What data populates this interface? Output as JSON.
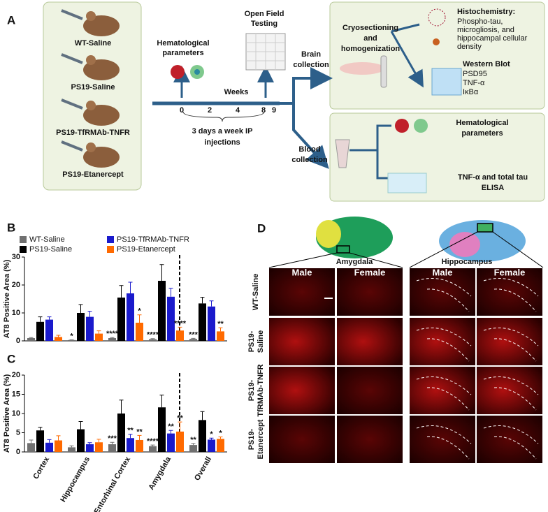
{
  "panels": [
    "A",
    "B",
    "C",
    "D"
  ],
  "panel_a": {
    "groups": [
      "WT-Saline",
      "PS19-Saline",
      "PS19-TfRMAb-TNFR",
      "PS19-Etanercept"
    ],
    "hematological": [
      "Hematological",
      "parameters"
    ],
    "open_field": [
      "Open Field",
      "Testing"
    ],
    "weeks": "Weeks",
    "week_ticks": [
      "0",
      "2",
      "4",
      "8",
      "9"
    ],
    "injections": [
      "3 days a week IP",
      "injections"
    ],
    "brain": [
      "Brain",
      "collection"
    ],
    "blood": [
      "Blood",
      "collection"
    ],
    "cryo": [
      "Cryosectioning",
      "and",
      "homogenization"
    ],
    "histo_title": "Histochemistry:",
    "histo_lines": [
      "Phospho-tau,",
      "microgliosis, and",
      "hippocampal cellular",
      "density"
    ],
    "western_title": "Western Blot",
    "western_lines": [
      "PSD95",
      "TNF-α",
      "IκBα"
    ],
    "blood_hema": [
      "Hematological",
      "parameters"
    ],
    "elisa": [
      "TNF-α and total tau",
      "ELISA"
    ]
  },
  "chart_data": [
    {
      "type": "bar",
      "ylabel": "AT8 Positive Area (%)",
      "ylim": [
        0,
        30
      ],
      "yticks": [
        0,
        10,
        20,
        30
      ],
      "series": [
        {
          "name": "WT-Saline",
          "color": "#707070",
          "values": [
            1.0,
            0.3,
            1.0,
            0.6,
            0.7
          ],
          "errors": [
            0.2,
            0.1,
            0.2,
            0.2,
            0.2
          ],
          "labels": [
            null,
            "*",
            "****",
            "****",
            "***"
          ]
        },
        {
          "name": "PS19-Saline",
          "color": "#000000",
          "values": [
            6.8,
            10.0,
            15.5,
            21.5,
            13.4
          ],
          "errors": [
            1.8,
            3.0,
            4.3,
            5.8,
            2.2
          ],
          "labels": [
            null,
            null,
            null,
            null,
            null
          ]
        },
        {
          "name": "PS19-TfRMAb-TNFR",
          "color": "#1a1acc",
          "values": [
            7.6,
            8.6,
            17.0,
            15.8,
            12.3
          ],
          "errors": [
            1.0,
            2.0,
            4.0,
            3.0,
            2.0
          ],
          "labels": [
            null,
            null,
            null,
            null,
            null
          ]
        },
        {
          "name": "PS19-Etanercept",
          "color": "#ff6a00",
          "values": [
            1.4,
            2.6,
            6.5,
            3.7,
            3.4
          ],
          "errors": [
            0.6,
            1.0,
            2.8,
            1.2,
            1.3
          ],
          "labels": [
            null,
            null,
            "*",
            "****",
            "**"
          ]
        }
      ]
    },
    {
      "type": "bar",
      "ylabel": "AT8 Positive Area (%)",
      "ylim": [
        0,
        20
      ],
      "yticks": [
        0,
        5,
        10,
        15,
        20
      ],
      "categories": [
        "Cortex",
        "Hippocampus",
        "Entorhinal Cortex",
        "Amygdala",
        "Overall"
      ],
      "series": [
        {
          "color": "#707070",
          "values": [
            2.3,
            1.2,
            2.0,
            1.5,
            1.8
          ],
          "errors": [
            0.8,
            0.4,
            0.5,
            0.3,
            0.4
          ],
          "labels": [
            null,
            null,
            "***",
            "****",
            "**"
          ]
        },
        {
          "color": "#000000",
          "values": [
            5.6,
            5.9,
            10.0,
            11.6,
            8.3
          ],
          "errors": [
            0.8,
            2.0,
            3.5,
            3.2,
            2.2
          ],
          "labels": [
            null,
            null,
            null,
            null,
            null
          ]
        },
        {
          "color": "#1a1acc",
          "values": [
            2.4,
            2.0,
            3.6,
            4.8,
            3.2
          ],
          "errors": [
            0.8,
            0.4,
            1.0,
            0.8,
            0.4
          ],
          "labels": [
            null,
            null,
            "**",
            "**",
            "*"
          ]
        },
        {
          "color": "#ff6a00",
          "values": [
            3.0,
            2.5,
            3.1,
            5.3,
            3.4
          ],
          "errors": [
            1.2,
            0.8,
            1.2,
            2.5,
            0.5
          ],
          "labels": [
            null,
            null,
            "**",
            "**",
            "*"
          ]
        }
      ]
    }
  ],
  "panel_d": {
    "regions": [
      "Amygdala",
      "Hippocampus"
    ],
    "columns": [
      "Male",
      "Female",
      "Male",
      "Female"
    ],
    "rows": [
      [
        "WT-Saline"
      ],
      [
        "PS19-",
        "Saline"
      ],
      [
        "PS19-",
        "TfRMAb-TNFR"
      ],
      [
        "PS19-",
        "Etanercept"
      ]
    ]
  }
}
